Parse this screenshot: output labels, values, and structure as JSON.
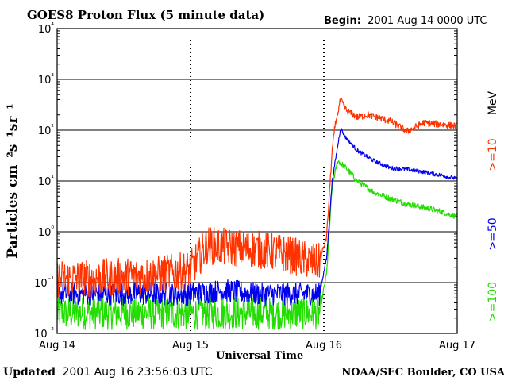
{
  "page": {
    "title": "GOES8 Proton Flux (5 minute data)",
    "begin_label": "Begin:",
    "begin_value": "2001 Aug 14 0000 UTC",
    "updated_label": "Updated",
    "updated_value": "2001 Aug 16 23:56:03 UTC",
    "source": "NOAA/SEC Boulder, CO USA"
  },
  "chart_data": {
    "type": "line",
    "title": "GOES8 Proton Flux (5 minute data)",
    "xlabel": "Universal Time",
    "ylabel": "Particles cm⁻²s⁻¹sr⁻¹",
    "yscale": "log",
    "ylim": [
      0.01,
      10000
    ],
    "ytick_values": [
      0.01,
      0.1,
      1,
      10,
      100,
      1000,
      10000
    ],
    "ytick_labels": [
      "10⁻²",
      "10⁻¹",
      "10⁰",
      "10¹",
      "10²",
      "10³",
      "10⁴"
    ],
    "x_unit": "hours since 2001 Aug 14 0000 UTC",
    "xlim": [
      0,
      72
    ],
    "xtick_values": [
      0,
      24,
      48,
      72
    ],
    "xtick_labels": [
      "Aug 14",
      "Aug 15",
      "Aug 16",
      "Aug 17"
    ],
    "grid": {
      "horizontal": true,
      "vertical_day_markers": true
    },
    "unit_label": "MeV",
    "series": [
      {
        "name": ">=10",
        "color": "#ff3300",
        "noise": 0.75,
        "x": [
          0,
          6,
          12,
          18,
          24,
          27,
          30,
          36,
          42,
          46,
          47.2,
          48.5,
          49.5,
          50,
          51,
          52,
          54,
          56,
          60,
          63,
          66,
          69,
          72
        ],
        "values": [
          0.12,
          0.12,
          0.13,
          0.14,
          0.18,
          0.55,
          0.5,
          0.45,
          0.35,
          0.25,
          0.25,
          0.8,
          40,
          120,
          400,
          250,
          180,
          200,
          150,
          95,
          140,
          130,
          120
        ]
      },
      {
        "name": ">=50",
        "color": "#0000ee",
        "noise": 0.45,
        "x": [
          0,
          12,
          24,
          30,
          36,
          42,
          47.2,
          48.5,
          49.5,
          51,
          52,
          54,
          57,
          60,
          63,
          66,
          69,
          72
        ],
        "values": [
          0.06,
          0.06,
          0.06,
          0.07,
          0.06,
          0.06,
          0.06,
          0.3,
          10,
          110,
          70,
          40,
          25,
          18,
          17,
          15,
          13,
          11
        ]
      },
      {
        "name": ">=100",
        "color": "#22dd00",
        "noise": 0.65,
        "x": [
          0,
          12,
          24,
          36,
          47.2,
          48.5,
          49.5,
          50.5,
          52,
          54,
          57,
          60,
          63,
          66,
          69,
          72
        ],
        "values": [
          0.025,
          0.025,
          0.025,
          0.025,
          0.025,
          0.15,
          8,
          25,
          18,
          10,
          6,
          4.5,
          3.5,
          3,
          2.5,
          2
        ]
      }
    ]
  }
}
